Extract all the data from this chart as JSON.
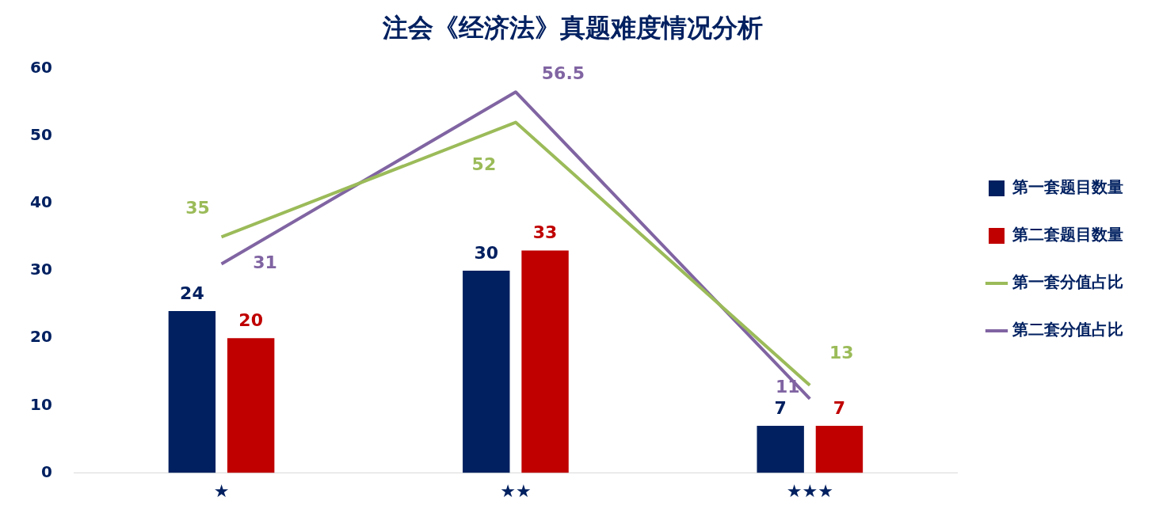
{
  "chart_data": {
    "type": "bar",
    "title": "注会《经济法》真题难度情况分析",
    "categories": [
      "★",
      "★★",
      "★★★"
    ],
    "series": [
      {
        "name": "第一套题目数量",
        "color": "#002060",
        "values": [
          24,
          30,
          7
        ]
      },
      {
        "name": "第二套题目数量",
        "color": "#c00000",
        "values": [
          20,
          33,
          7
        ]
      },
      {
        "name": "第一套分值占比",
        "type": "line",
        "color": "#9bbb59",
        "values": [
          35,
          52,
          13
        ]
      },
      {
        "name": "第二套分值占比",
        "type": "line",
        "color": "#8064a2",
        "values": [
          31,
          56.5,
          11
        ]
      }
    ],
    "ylim": [
      0,
      60
    ],
    "yticks": [
      0,
      10,
      20,
      30,
      40,
      50,
      60
    ],
    "grid": false,
    "legend": "right",
    "marker": "none",
    "line_style": "solid",
    "data_labels": true
  }
}
